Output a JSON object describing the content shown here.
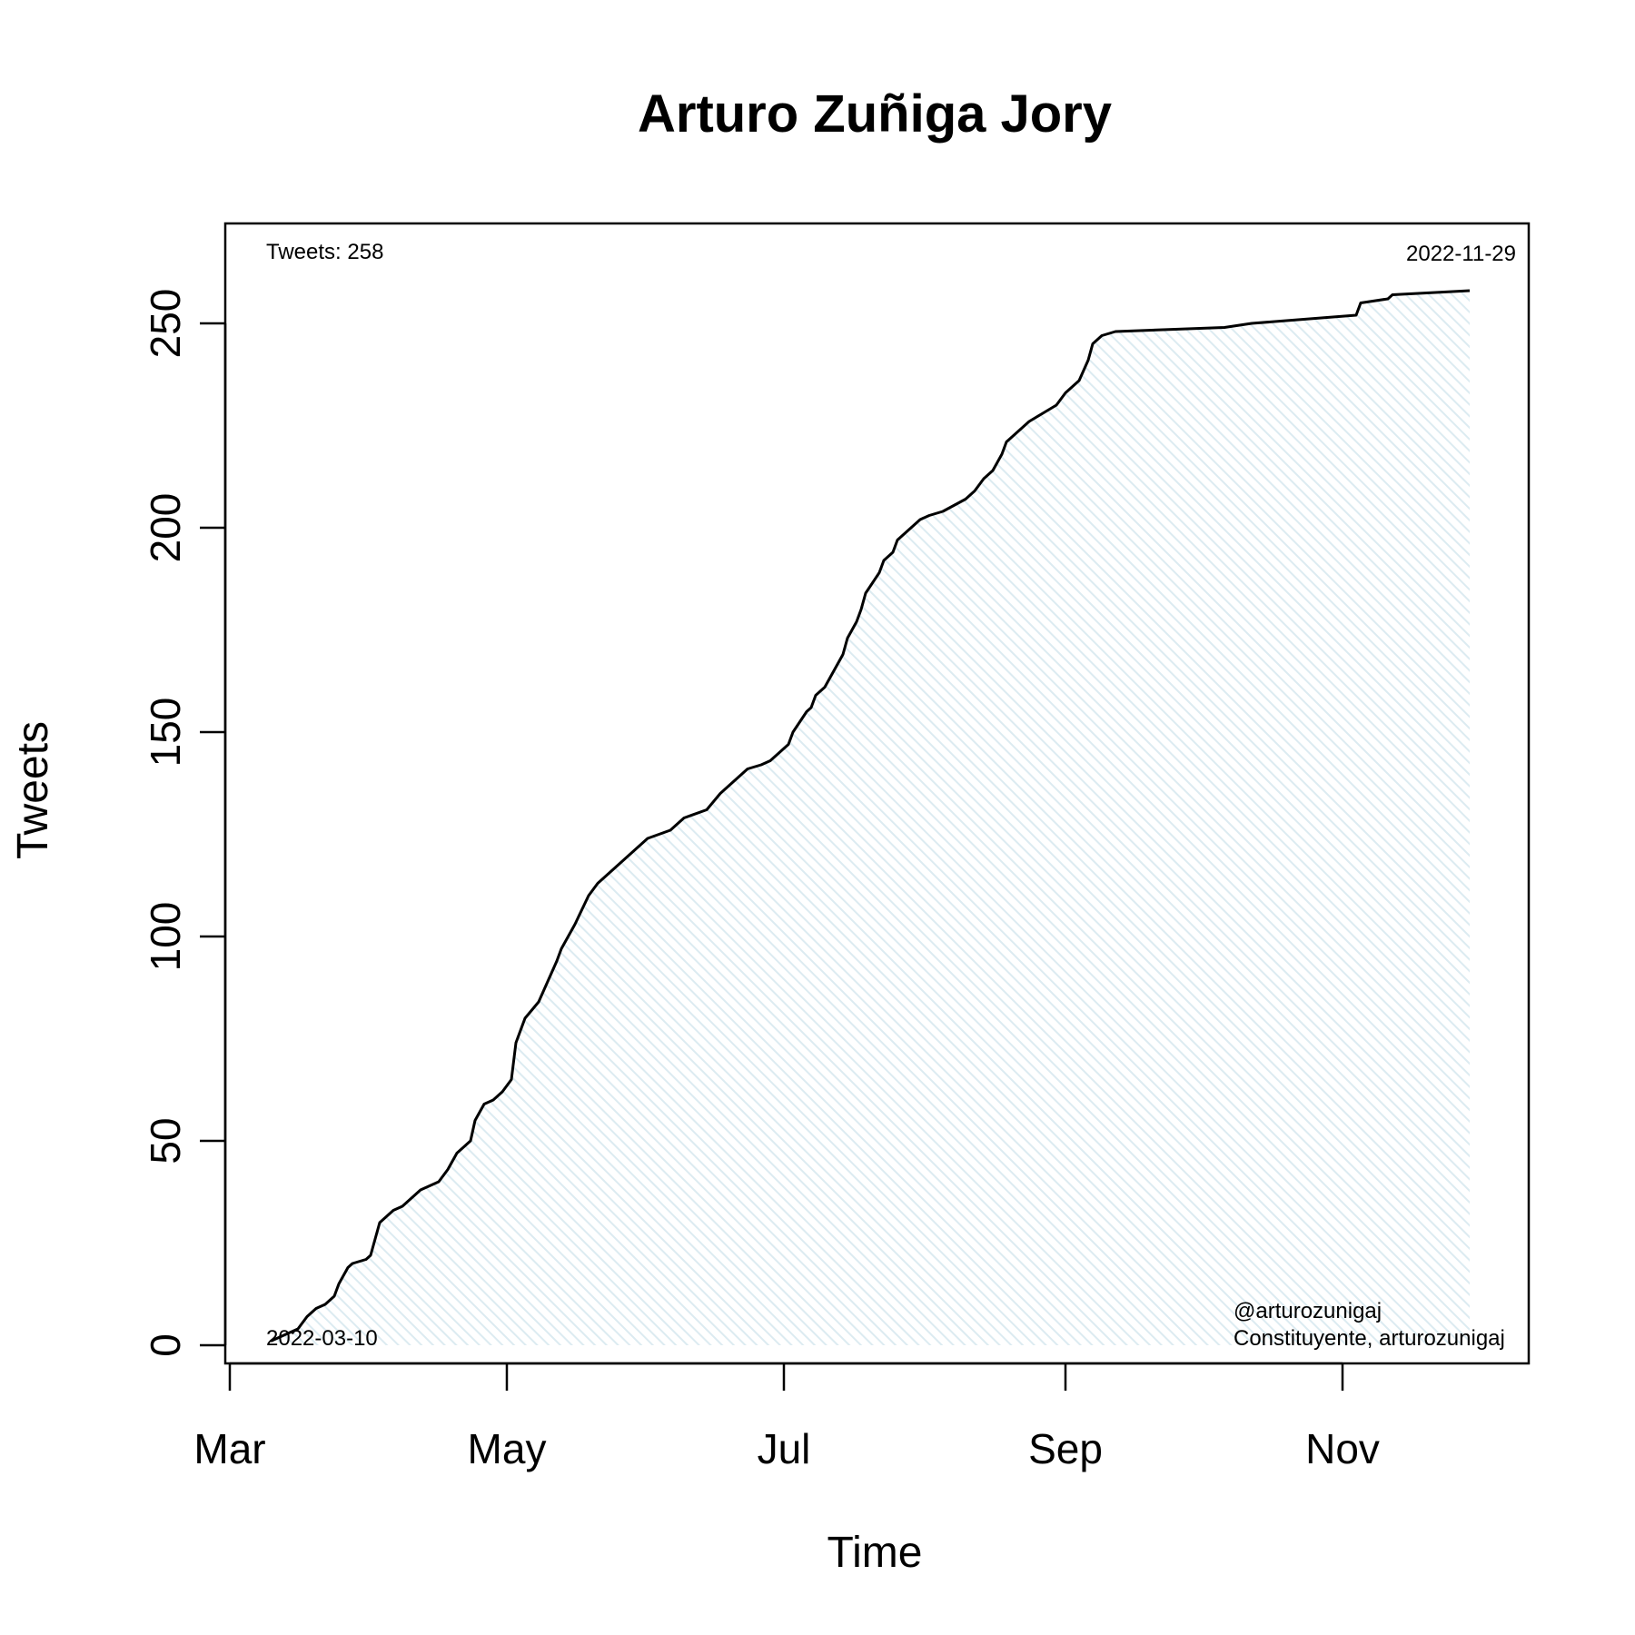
{
  "chart_data": {
    "type": "area",
    "title": "Arturo Zuñiga Jory",
    "xlabel": "Time",
    "ylabel": "Tweets",
    "ylim": [
      0,
      270
    ],
    "xlim": [
      "2022-02-28",
      "2022-12-12"
    ],
    "y_ticks": [
      0,
      50,
      100,
      150,
      200,
      250
    ],
    "x_ticks": [
      {
        "date": "2022-03-01",
        "label": "Mar"
      },
      {
        "date": "2022-05-01",
        "label": "May"
      },
      {
        "date": "2022-07-01",
        "label": "Jul"
      },
      {
        "date": "2022-09-01",
        "label": "Sep"
      },
      {
        "date": "2022-11-01",
        "label": "Nov"
      }
    ],
    "grid": false,
    "fill_color": "#eaf3f7",
    "line_color": "#000000",
    "annotations": {
      "tweet_count": "Tweets: 258",
      "start_date": "2022-03-10",
      "end_date": "2022-11-29",
      "handle": "@arturozunigaj",
      "description": "Constituyente, arturozunigaj"
    },
    "series": [
      {
        "x": [
          "2022-03-10",
          "2022-03-14",
          "2022-03-16",
          "2022-03-18",
          "2022-03-20",
          "2022-03-22",
          "2022-03-23",
          "2022-03-24",
          "2022-03-25",
          "2022-03-27",
          "2022-03-28",
          "2022-03-31",
          "2022-04-01",
          "2022-04-03",
          "2022-04-06",
          "2022-04-08",
          "2022-04-12",
          "2022-04-14",
          "2022-04-16",
          "2022-04-18",
          "2022-04-19",
          "2022-04-20",
          "2022-04-21",
          "2022-04-23",
          "2022-04-24",
          "2022-04-25",
          "2022-04-26",
          "2022-04-28",
          "2022-04-30",
          "2022-05-02",
          "2022-05-03",
          "2022-05-04",
          "2022-05-05",
          "2022-05-08",
          "2022-05-12",
          "2022-05-13",
          "2022-05-15",
          "2022-05-16",
          "2022-05-19",
          "2022-05-21",
          "2022-05-22",
          "2022-05-23",
          "2022-05-30",
          "2022-06-01",
          "2022-06-06",
          "2022-06-07",
          "2022-06-08",
          "2022-06-09",
          "2022-06-14",
          "2022-06-17",
          "2022-06-20",
          "2022-06-22",
          "2022-06-23",
          "2022-06-26",
          "2022-06-28",
          "2022-06-30",
          "2022-07-02",
          "2022-07-03",
          "2022-07-06",
          "2022-07-07",
          "2022-07-08",
          "2022-07-10",
          "2022-07-12",
          "2022-07-13",
          "2022-07-14",
          "2022-07-15",
          "2022-07-17",
          "2022-07-18",
          "2022-07-19",
          "2022-07-22",
          "2022-07-23",
          "2022-07-25",
          "2022-07-26",
          "2022-07-29",
          "2022-07-31",
          "2022-08-02",
          "2022-08-05",
          "2022-08-10",
          "2022-08-12",
          "2022-08-14",
          "2022-08-16",
          "2022-08-18",
          "2022-08-19",
          "2022-08-21",
          "2022-08-24",
          "2022-08-27",
          "2022-08-30",
          "2022-09-01",
          "2022-09-04",
          "2022-09-06",
          "2022-09-07",
          "2022-09-09",
          "2022-09-12",
          "2022-10-06",
          "2022-10-12",
          "2022-11-04",
          "2022-11-05",
          "2022-11-11",
          "2022-11-12",
          "2022-11-29"
        ],
        "y": [
          1,
          3,
          4,
          7,
          9,
          10,
          11,
          12,
          15,
          19,
          20,
          21,
          22,
          30,
          33,
          34,
          38,
          39,
          40,
          43,
          45,
          47,
          48,
          50,
          55,
          57,
          59,
          60,
          62,
          65,
          74,
          77,
          80,
          84,
          94,
          97,
          101,
          103,
          110,
          113,
          114,
          115,
          122,
          124,
          126,
          127,
          128,
          129,
          131,
          135,
          138,
          140,
          141,
          142,
          143,
          145,
          147,
          150,
          155,
          156,
          159,
          161,
          165,
          167,
          169,
          173,
          177,
          180,
          184,
          189,
          192,
          194,
          197,
          200,
          202,
          203,
          204,
          207,
          209,
          212,
          214,
          218,
          221,
          223,
          226,
          228,
          230,
          233,
          236,
          241,
          245,
          247,
          248,
          249,
          250,
          252,
          255,
          256,
          257,
          258
        ]
      }
    ]
  }
}
